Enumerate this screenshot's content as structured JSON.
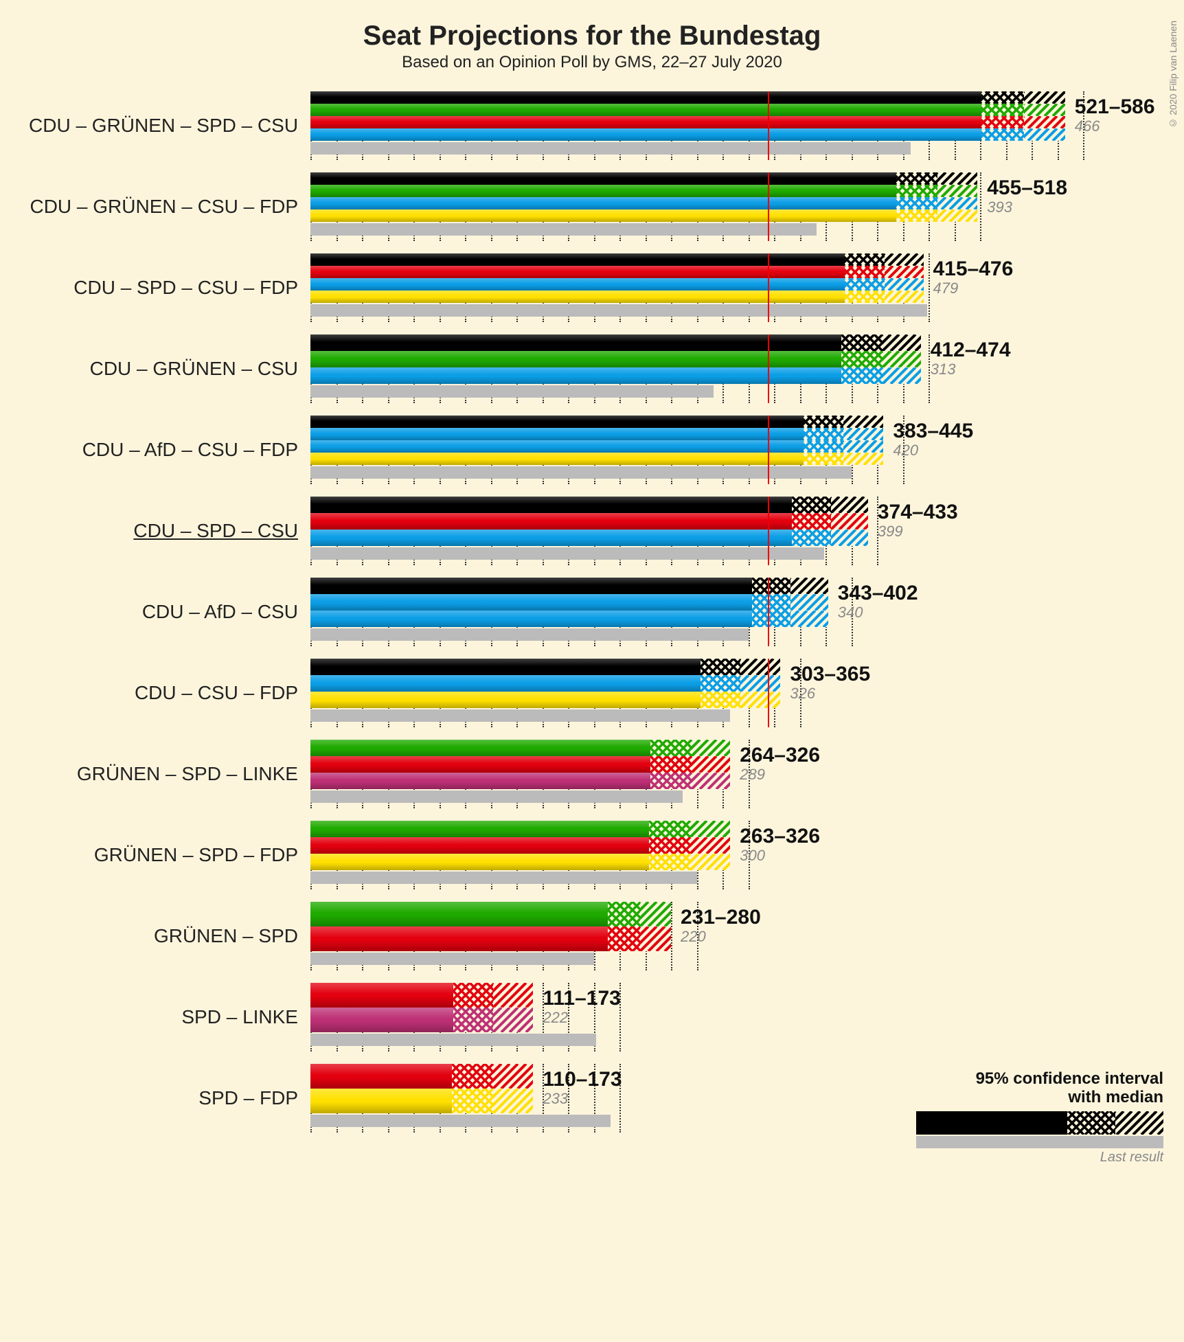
{
  "title": "Seat Projections for the Bundestag",
  "subtitle": "Based on an Opinion Poll by GMS, 22–27 July 2020",
  "copyright": "© 2020 Filip van Laenen",
  "chart": {
    "max_seats": 640,
    "tick_step": 20,
    "majority_line": 355,
    "party_colors": {
      "CDU": "#000000",
      "CSU": "#0b9ee6",
      "SPD": "#e3000f",
      "GRÜNEN": "#1faa00",
      "FDP": "#ffe000",
      "AfD": "#0b9ee6",
      "LINKE": "#be3075"
    },
    "background_color": "#fcf5dc",
    "tick_color": "#333333",
    "last_color": "#bbbbbb",
    "text_color": "#111111",
    "prev_color": "#888888"
  },
  "legend": {
    "title_line1": "95% confidence interval",
    "title_line2": "with median",
    "last_label": "Last result"
  },
  "coalitions": [
    {
      "label": "CDU – GRÜNEN – SPD – CSU",
      "parties": [
        "CDU",
        "GRÜNEN",
        "SPD",
        "CSU"
      ],
      "low": 521,
      "median": 554,
      "high": 586,
      "last": 466,
      "underline": false
    },
    {
      "label": "CDU – GRÜNEN – CSU – FDP",
      "parties": [
        "CDU",
        "GRÜNEN",
        "CSU",
        "FDP"
      ],
      "low": 455,
      "median": 487,
      "high": 518,
      "last": 393,
      "underline": false
    },
    {
      "label": "CDU – SPD – CSU – FDP",
      "parties": [
        "CDU",
        "SPD",
        "CSU",
        "FDP"
      ],
      "low": 415,
      "median": 446,
      "high": 476,
      "last": 479,
      "underline": false
    },
    {
      "label": "CDU – GRÜNEN – CSU",
      "parties": [
        "CDU",
        "GRÜNEN",
        "CSU"
      ],
      "low": 412,
      "median": 444,
      "high": 474,
      "last": 313,
      "underline": false
    },
    {
      "label": "CDU – AfD – CSU – FDP",
      "parties": [
        "CDU",
        "AfD",
        "CSU",
        "FDP"
      ],
      "low": 383,
      "median": 414,
      "high": 445,
      "last": 420,
      "underline": false
    },
    {
      "label": "CDU – SPD – CSU",
      "parties": [
        "CDU",
        "SPD",
        "CSU"
      ],
      "low": 374,
      "median": 404,
      "high": 433,
      "last": 399,
      "underline": true
    },
    {
      "label": "CDU – AfD – CSU",
      "parties": [
        "CDU",
        "AfD",
        "CSU"
      ],
      "low": 343,
      "median": 373,
      "high": 402,
      "last": 340,
      "underline": false
    },
    {
      "label": "CDU – CSU – FDP",
      "parties": [
        "CDU",
        "CSU",
        "FDP"
      ],
      "low": 303,
      "median": 334,
      "high": 365,
      "last": 326,
      "underline": false
    },
    {
      "label": "GRÜNEN – SPD – LINKE",
      "parties": [
        "GRÜNEN",
        "SPD",
        "LINKE"
      ],
      "low": 264,
      "median": 296,
      "high": 326,
      "last": 289,
      "underline": false
    },
    {
      "label": "GRÜNEN – SPD – FDP",
      "parties": [
        "GRÜNEN",
        "SPD",
        "FDP"
      ],
      "low": 263,
      "median": 295,
      "high": 326,
      "last": 300,
      "underline": false
    },
    {
      "label": "GRÜNEN – SPD",
      "parties": [
        "GRÜNEN",
        "SPD"
      ],
      "low": 231,
      "median": 256,
      "high": 280,
      "last": 220,
      "underline": false
    },
    {
      "label": "SPD – LINKE",
      "parties": [
        "SPD",
        "LINKE"
      ],
      "low": 111,
      "median": 142,
      "high": 173,
      "last": 222,
      "underline": false
    },
    {
      "label": "SPD – FDP",
      "parties": [
        "SPD",
        "FDP"
      ],
      "low": 110,
      "median": 142,
      "high": 173,
      "last": 233,
      "underline": false
    }
  ]
}
